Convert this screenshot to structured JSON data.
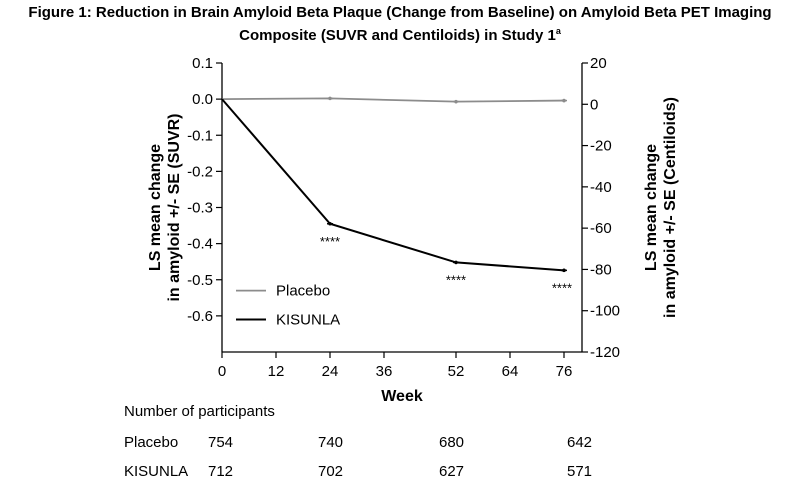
{
  "title": {
    "line1": "Figure 1: Reduction in Brain Amyloid Beta Plaque (Change from Baseline) on Amyloid Beta PET Imaging",
    "line2": "Composite (SUVR and Centiloids) in Study 1",
    "superscript": "a"
  },
  "chart_data": {
    "type": "line",
    "xlabel": "Week",
    "ylabel_left": [
      "LS mean change",
      "in amyloid +/- SE (SUVR)"
    ],
    "ylabel_right": [
      "LS mean change",
      "in amyloid +/- SE (Centiloids)"
    ],
    "x_ticks": [
      0,
      12,
      24,
      36,
      52,
      64,
      76
    ],
    "x_tick_labels": [
      "0",
      "12",
      "24",
      "36",
      "52",
      "64",
      "76"
    ],
    "xlim": [
      0,
      80
    ],
    "ylim_left": [
      -0.7,
      0.1
    ],
    "y_ticks_left": [
      0.1,
      0.0,
      -0.1,
      -0.2,
      -0.3,
      -0.4,
      -0.5,
      -0.6
    ],
    "y_tick_labels_left": [
      "0.1",
      "0.0",
      "-0.1",
      "-0.2",
      "-0.3",
      "-0.4",
      "-0.5",
      "-0.6"
    ],
    "ylim_right": [
      -120,
      20
    ],
    "y_ticks_right": [
      20,
      0,
      -20,
      -40,
      -60,
      -80,
      -100,
      -120
    ],
    "y_tick_labels_right": [
      "20",
      "0",
      "-20",
      "-40",
      "-60",
      "-80",
      "-100",
      "-120"
    ],
    "x": [
      0,
      24,
      52,
      76
    ],
    "series": [
      {
        "name": "Placebo",
        "color": "#8c8c8c",
        "values": [
          0.0,
          0.002,
          -0.007,
          -0.004
        ]
      },
      {
        "name": "KISUNLA",
        "color": "#000000",
        "values": [
          0.0,
          -0.345,
          -0.452,
          -0.474
        ]
      }
    ],
    "annotations": [
      {
        "x": 24,
        "text": "****"
      },
      {
        "x": 52,
        "text": "****"
      },
      {
        "x": 76,
        "text": "****"
      }
    ],
    "legend_position": "bottom-left"
  },
  "participants": {
    "heading": "Number of participants",
    "rows": [
      {
        "label": "Placebo",
        "counts": [
          "754",
          "740",
          "680",
          "642"
        ]
      },
      {
        "label": "KISUNLA",
        "counts": [
          "712",
          "702",
          "627",
          "571"
        ]
      }
    ]
  }
}
